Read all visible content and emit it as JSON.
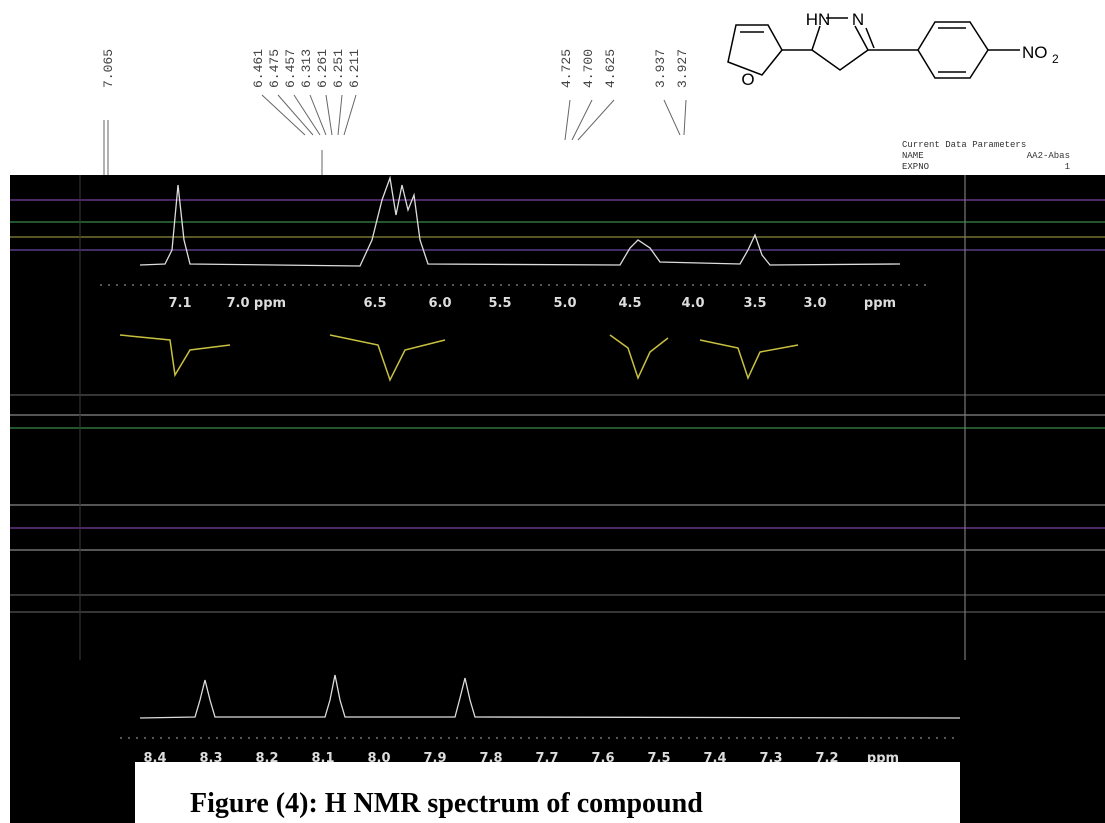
{
  "peak_labels_upper": [
    "7.065",
    "6.461",
    "6.475",
    "6.457",
    "6.313",
    "6.261",
    "6.251",
    "6.211",
    "4.725",
    "4.700",
    "4.625",
    "3.937",
    "3.927"
  ],
  "structure": {
    "labels": [
      "HN",
      "N",
      "O",
      "NO",
      "2"
    ]
  },
  "parameters": {
    "title": "Current Data Parameters",
    "rows": [
      [
        "NAME",
        "AA2-Abas"
      ],
      [
        "EXPNO",
        "1"
      ]
    ]
  },
  "upper_axis": {
    "ticks": [
      "7.1",
      "7.0",
      "ppm",
      "6.5",
      "6.0",
      "5.5",
      "5.0",
      "4.5",
      "4.0",
      "3.5",
      "3.0",
      "ppm"
    ]
  },
  "lower_axis": {
    "ticks": [
      "8.4",
      "8.3",
      "8.2",
      "8.1",
      "8.0",
      "7.9",
      "7.8",
      "7.7",
      "7.6",
      "7.5",
      "7.4",
      "7.3",
      "7.2",
      "ppm"
    ]
  },
  "caption": "Figure (4): H NMR spectrum of compound"
}
